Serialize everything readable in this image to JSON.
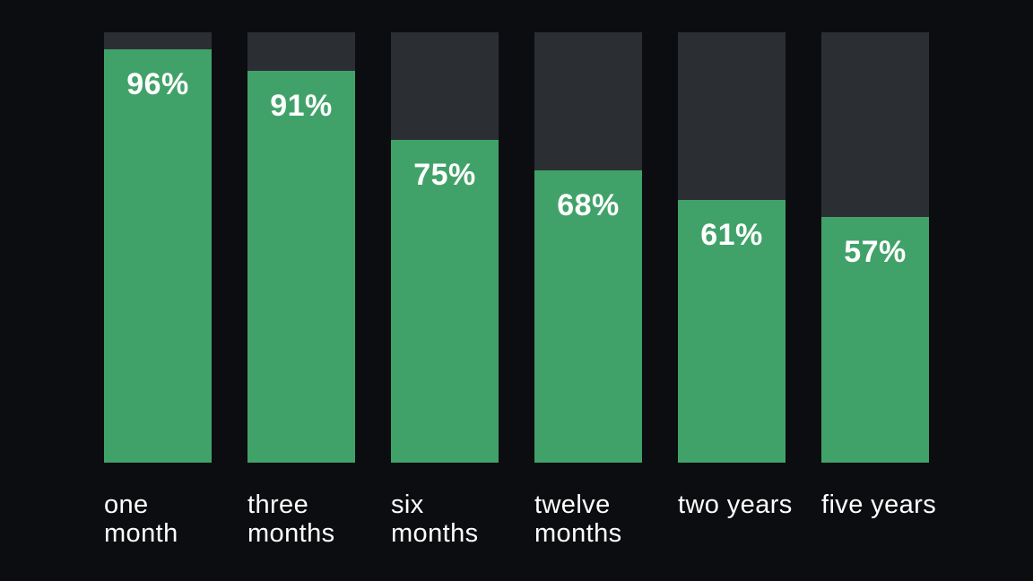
{
  "chart_data": {
    "type": "bar",
    "categories": [
      "one month",
      "three months",
      "six months",
      "twelve months",
      "two years",
      "five years"
    ],
    "values": [
      96,
      91,
      75,
      68,
      61,
      57
    ],
    "value_labels": [
      "96%",
      "91%",
      "75%",
      "68%",
      "61%",
      "57%"
    ],
    "title": "",
    "xlabel": "",
    "ylabel": "",
    "ylim": [
      0,
      100
    ],
    "grid": false,
    "legend": false,
    "orientation": "vertical",
    "value_label_position": "inside-top-center",
    "category_label_position": "below-left-aligned",
    "colors": {
      "fill": "#41a269",
      "track": "#2b2f33",
      "background": "#0b0d10",
      "text": "#ffffff"
    }
  }
}
